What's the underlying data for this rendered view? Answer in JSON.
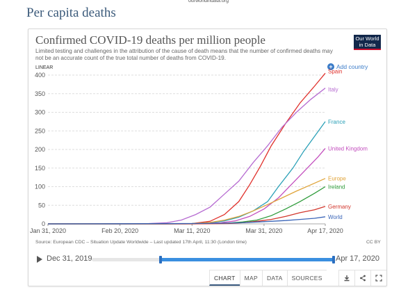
{
  "page": {
    "url_fragment": "ourworldindata.org",
    "section_title": "Per capita deaths"
  },
  "card": {
    "title": "Confirmed COVID-19 deaths per million people",
    "subtitle": "Limited testing and challenges in the attribution of the cause of death means that the number of confirmed deaths may not be an accurate count of the true total number of deaths from COVID-19.",
    "logo_line1": "Our World",
    "logo_line2": "in Data",
    "axis_toggle": "LINEAR",
    "add_country": "Add country",
    "source": "Source: European CDC – Situation Update Worldwide – Last updated 17th April, 11:30 (London time)",
    "license": "CC BY"
  },
  "timeline": {
    "start_label": "Dec 31, 2019",
    "end_label": "Apr 17, 2020"
  },
  "tabs": [
    "CHART",
    "MAP",
    "DATA",
    "SOURCES"
  ],
  "tab_icons": [
    "download-icon",
    "share-icon",
    "fullscreen-icon"
  ],
  "chart_data": {
    "type": "line",
    "title": "Confirmed COVID-19 deaths per million people",
    "ylabel": "",
    "xlabel": "",
    "ylim": [
      0,
      400
    ],
    "yticks": [
      0,
      50,
      100,
      150,
      200,
      250,
      300,
      350,
      400
    ],
    "x_start": "2020-01-31",
    "x_end": "2020-04-17",
    "xticks": [
      {
        "label": "Jan 31, 2020",
        "date": "2020-01-31"
      },
      {
        "label": "Feb 20, 2020",
        "date": "2020-02-20"
      },
      {
        "label": "Mar 11, 2020",
        "date": "2020-03-11"
      },
      {
        "label": "Mar 31, 2020",
        "date": "2020-03-31"
      },
      {
        "label": "Apr 17, 2020",
        "date": "2020-04-17"
      }
    ],
    "grid": "horizontal-dashed",
    "legend": "inline-right",
    "series": [
      {
        "name": "Spain",
        "color": "#e0302b",
        "points": [
          [
            "2020-01-31",
            0
          ],
          [
            "2020-03-03",
            0
          ],
          [
            "2020-03-11",
            1
          ],
          [
            "2020-03-16",
            7
          ],
          [
            "2020-03-20",
            25
          ],
          [
            "2020-03-24",
            60
          ],
          [
            "2020-03-27",
            105
          ],
          [
            "2020-03-30",
            155
          ],
          [
            "2020-04-02",
            210
          ],
          [
            "2020-04-06",
            270
          ],
          [
            "2020-04-10",
            325
          ],
          [
            "2020-04-14",
            370
          ],
          [
            "2020-04-17",
            405
          ]
        ]
      },
      {
        "name": "Italy",
        "color": "#b66bd1",
        "points": [
          [
            "2020-01-31",
            0
          ],
          [
            "2020-02-22",
            0
          ],
          [
            "2020-02-28",
            1
          ],
          [
            "2020-03-04",
            3
          ],
          [
            "2020-03-08",
            10
          ],
          [
            "2020-03-12",
            25
          ],
          [
            "2020-03-16",
            45
          ],
          [
            "2020-03-20",
            80
          ],
          [
            "2020-03-24",
            115
          ],
          [
            "2020-03-28",
            165
          ],
          [
            "2020-04-01",
            210
          ],
          [
            "2020-04-05",
            260
          ],
          [
            "2020-04-09",
            300
          ],
          [
            "2020-04-13",
            335
          ],
          [
            "2020-04-17",
            365
          ]
        ]
      },
      {
        "name": "France",
        "color": "#2aa0b7",
        "points": [
          [
            "2020-01-31",
            0
          ],
          [
            "2020-03-05",
            0
          ],
          [
            "2020-03-11",
            1
          ],
          [
            "2020-03-16",
            3
          ],
          [
            "2020-03-20",
            8
          ],
          [
            "2020-03-24",
            18
          ],
          [
            "2020-03-28",
            35
          ],
          [
            "2020-04-01",
            60
          ],
          [
            "2020-04-04",
            100
          ],
          [
            "2020-04-08",
            150
          ],
          [
            "2020-04-11",
            195
          ],
          [
            "2020-04-14",
            235
          ],
          [
            "2020-04-17",
            275
          ]
        ]
      },
      {
        "name": "United Kingdom",
        "color": "#c34fbe",
        "points": [
          [
            "2020-01-31",
            0
          ],
          [
            "2020-03-09",
            0
          ],
          [
            "2020-03-14",
            1
          ],
          [
            "2020-03-19",
            3
          ],
          [
            "2020-03-23",
            8
          ],
          [
            "2020-03-27",
            20
          ],
          [
            "2020-03-31",
            40
          ],
          [
            "2020-04-04",
            70
          ],
          [
            "2020-04-08",
            110
          ],
          [
            "2020-04-12",
            150
          ],
          [
            "2020-04-15",
            180
          ],
          [
            "2020-04-17",
            203
          ]
        ]
      },
      {
        "name": "Europe",
        "color": "#e0a43a",
        "points": [
          [
            "2020-01-31",
            0
          ],
          [
            "2020-03-05",
            0
          ],
          [
            "2020-03-11",
            1
          ],
          [
            "2020-03-16",
            4
          ],
          [
            "2020-03-20",
            10
          ],
          [
            "2020-03-24",
            20
          ],
          [
            "2020-03-28",
            35
          ],
          [
            "2020-04-01",
            52
          ],
          [
            "2020-04-05",
            70
          ],
          [
            "2020-04-09",
            88
          ],
          [
            "2020-04-13",
            105
          ],
          [
            "2020-04-17",
            122
          ]
        ]
      },
      {
        "name": "Ireland",
        "color": "#2e9b3a",
        "points": [
          [
            "2020-01-31",
            0
          ],
          [
            "2020-03-11",
            0
          ],
          [
            "2020-03-16",
            1
          ],
          [
            "2020-03-21",
            2
          ],
          [
            "2020-03-25",
            5
          ],
          [
            "2020-03-29",
            10
          ],
          [
            "2020-04-02",
            22
          ],
          [
            "2020-04-06",
            40
          ],
          [
            "2020-04-10",
            60
          ],
          [
            "2020-04-14",
            82
          ],
          [
            "2020-04-17",
            100
          ]
        ]
      },
      {
        "name": "Germany",
        "color": "#d2362c",
        "points": [
          [
            "2020-01-31",
            0
          ],
          [
            "2020-03-11",
            0
          ],
          [
            "2020-03-16",
            0.3
          ],
          [
            "2020-03-21",
            1
          ],
          [
            "2020-03-25",
            3
          ],
          [
            "2020-03-29",
            7
          ],
          [
            "2020-04-02",
            12
          ],
          [
            "2020-04-06",
            20
          ],
          [
            "2020-04-10",
            30
          ],
          [
            "2020-04-14",
            38
          ],
          [
            "2020-04-17",
            47
          ]
        ]
      },
      {
        "name": "World",
        "color": "#3a65b8",
        "points": [
          [
            "2020-01-31",
            0
          ],
          [
            "2020-02-20",
            0.3
          ],
          [
            "2020-03-11",
            1
          ],
          [
            "2020-03-16",
            1.5
          ],
          [
            "2020-03-21",
            2
          ],
          [
            "2020-03-25",
            3
          ],
          [
            "2020-03-29",
            5
          ],
          [
            "2020-04-02",
            7
          ],
          [
            "2020-04-06",
            9
          ],
          [
            "2020-04-10",
            12
          ],
          [
            "2020-04-14",
            15
          ],
          [
            "2020-04-17",
            19
          ]
        ]
      }
    ]
  }
}
